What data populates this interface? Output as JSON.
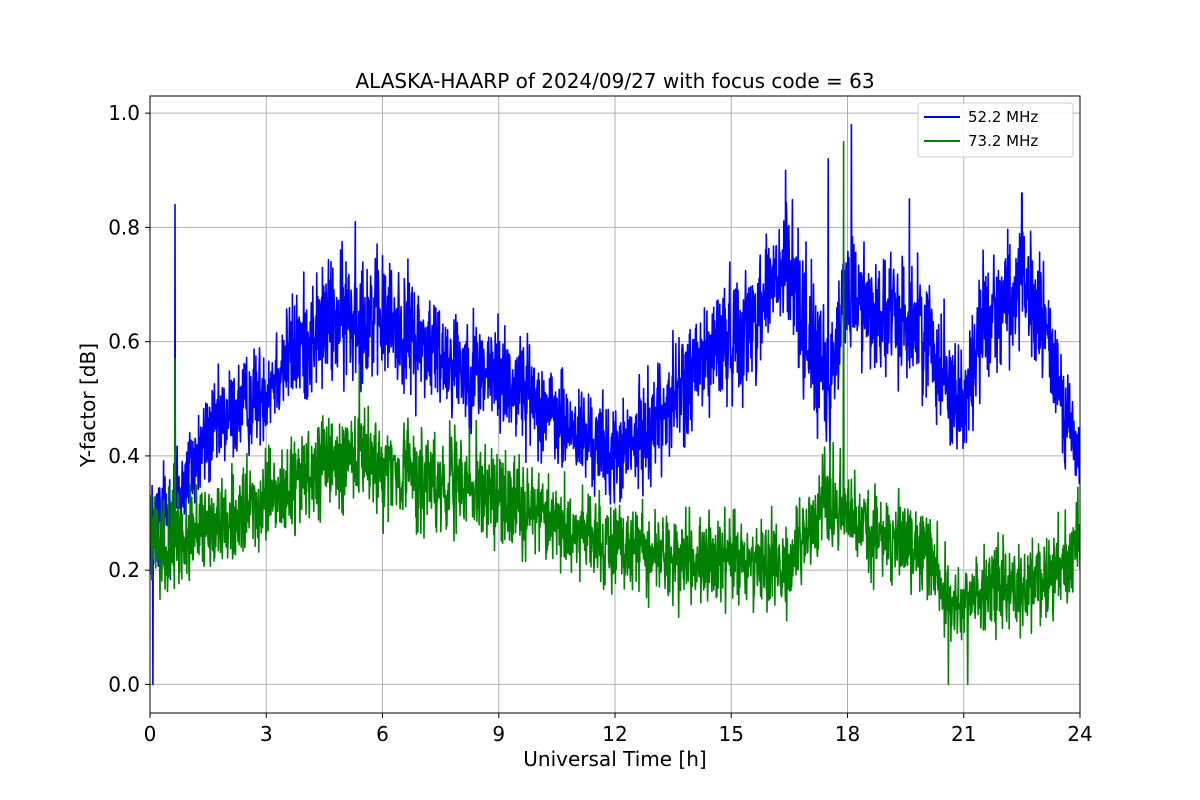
{
  "chart_data": {
    "type": "line",
    "title": "ALASKA-HAARP of 2024/09/27 with focus code = 63",
    "xlabel": "Universal Time [h]",
    "ylabel": "Y-factor [dB]",
    "xlim": [
      0,
      24
    ],
    "ylim": [
      -0.05,
      1.03
    ],
    "xticks": [
      0,
      3,
      6,
      9,
      12,
      15,
      18,
      21,
      24
    ],
    "yticks": [
      0.0,
      0.2,
      0.4,
      0.6,
      0.8,
      1.0
    ],
    "xtick_labels": [
      "0",
      "3",
      "6",
      "9",
      "12",
      "15",
      "18",
      "21",
      "24"
    ],
    "ytick_labels": [
      "0.0",
      "0.2",
      "0.4",
      "0.6",
      "0.8",
      "1.0"
    ],
    "grid": true,
    "legend_position": "top-right",
    "series": [
      {
        "name": "52.2 MHz",
        "color": "#0000ff",
        "x": [
          0,
          0.5,
          1,
          1.5,
          2,
          2.5,
          3,
          3.5,
          4,
          4.5,
          5,
          5.5,
          6,
          6.5,
          7,
          7.5,
          8,
          8.5,
          9,
          9.5,
          10,
          10.5,
          11,
          11.5,
          12,
          12.5,
          13,
          13.5,
          14,
          14.5,
          15,
          15.5,
          16,
          16.5,
          17,
          17.5,
          18,
          18.5,
          19,
          19.5,
          20,
          20.5,
          21,
          21.5,
          22,
          22.5,
          23,
          23.5,
          24
        ],
        "center": [
          0.27,
          0.3,
          0.37,
          0.43,
          0.47,
          0.49,
          0.52,
          0.57,
          0.6,
          0.63,
          0.64,
          0.65,
          0.64,
          0.62,
          0.6,
          0.58,
          0.56,
          0.55,
          0.54,
          0.52,
          0.5,
          0.46,
          0.44,
          0.42,
          0.4,
          0.42,
          0.46,
          0.5,
          0.54,
          0.58,
          0.61,
          0.63,
          0.7,
          0.72,
          0.62,
          0.5,
          0.7,
          0.66,
          0.64,
          0.64,
          0.62,
          0.55,
          0.48,
          0.64,
          0.67,
          0.69,
          0.64,
          0.52,
          0.38
        ],
        "spread": [
          0.08,
          0.1,
          0.08,
          0.08,
          0.08,
          0.08,
          0.08,
          0.09,
          0.1,
          0.1,
          0.11,
          0.11,
          0.1,
          0.1,
          0.1,
          0.09,
          0.09,
          0.09,
          0.09,
          0.09,
          0.08,
          0.08,
          0.08,
          0.08,
          0.08,
          0.08,
          0.09,
          0.09,
          0.1,
          0.1,
          0.1,
          0.1,
          0.1,
          0.12,
          0.12,
          0.1,
          0.1,
          0.1,
          0.1,
          0.1,
          0.1,
          0.1,
          0.1,
          0.1,
          0.1,
          0.1,
          0.1,
          0.09,
          0.06
        ],
        "spikes": [
          {
            "x": 0.07,
            "y": 0.0
          },
          {
            "x": 0.65,
            "y": 0.84
          },
          {
            "x": 5.3,
            "y": 0.81
          },
          {
            "x": 16.4,
            "y": 0.9
          },
          {
            "x": 17.5,
            "y": 0.92
          },
          {
            "x": 18.1,
            "y": 0.98
          },
          {
            "x": 19.6,
            "y": 0.85
          },
          {
            "x": 22.5,
            "y": 0.86
          }
        ]
      },
      {
        "name": "73.2 MHz",
        "color": "#008000",
        "x": [
          0,
          0.5,
          1,
          1.5,
          2,
          2.5,
          3,
          3.5,
          4,
          4.5,
          5,
          5.5,
          6,
          6.5,
          7,
          7.5,
          8,
          8.5,
          9,
          9.5,
          10,
          10.5,
          11,
          11.5,
          12,
          12.5,
          13,
          13.5,
          14,
          14.5,
          15,
          15.5,
          16,
          16.5,
          17,
          17.5,
          18,
          18.5,
          19,
          19.5,
          20,
          20.5,
          21,
          21.5,
          22,
          22.5,
          23,
          23.5,
          24
        ],
        "center": [
          0.25,
          0.24,
          0.26,
          0.28,
          0.29,
          0.3,
          0.32,
          0.34,
          0.36,
          0.38,
          0.39,
          0.39,
          0.38,
          0.37,
          0.36,
          0.35,
          0.35,
          0.34,
          0.33,
          0.32,
          0.3,
          0.28,
          0.27,
          0.26,
          0.25,
          0.24,
          0.23,
          0.22,
          0.22,
          0.22,
          0.22,
          0.21,
          0.21,
          0.2,
          0.28,
          0.32,
          0.3,
          0.26,
          0.26,
          0.25,
          0.24,
          0.16,
          0.14,
          0.17,
          0.18,
          0.18,
          0.19,
          0.2,
          0.24
        ],
        "spread": [
          0.07,
          0.08,
          0.07,
          0.07,
          0.07,
          0.07,
          0.07,
          0.07,
          0.08,
          0.08,
          0.08,
          0.08,
          0.08,
          0.08,
          0.08,
          0.08,
          0.08,
          0.08,
          0.08,
          0.08,
          0.07,
          0.07,
          0.07,
          0.07,
          0.07,
          0.07,
          0.07,
          0.07,
          0.07,
          0.07,
          0.07,
          0.07,
          0.07,
          0.07,
          0.07,
          0.08,
          0.08,
          0.07,
          0.07,
          0.07,
          0.07,
          0.07,
          0.07,
          0.07,
          0.07,
          0.07,
          0.07,
          0.07,
          0.08
        ],
        "spikes": [
          {
            "x": 0.65,
            "y": 0.57
          },
          {
            "x": 5.4,
            "y": 0.56
          },
          {
            "x": 17.9,
            "y": 0.95
          },
          {
            "x": 20.6,
            "y": 0.0
          },
          {
            "x": 21.1,
            "y": 0.0
          }
        ]
      }
    ]
  }
}
